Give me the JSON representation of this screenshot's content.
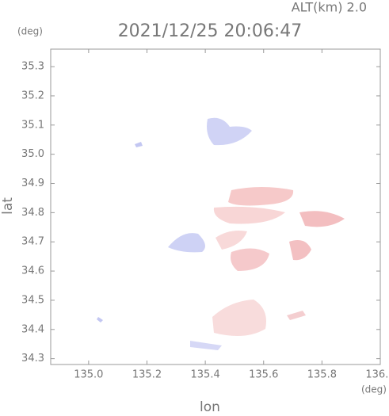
{
  "chart_data": {
    "type": "map",
    "title": "2021/12/25 20:06:47",
    "subtitle": "ALT(km) 2.0",
    "x_label": "lon",
    "y_label": "lat",
    "x_unit": "(deg)",
    "y_unit": "(deg)",
    "xlim": [
      134.87,
      136.0
    ],
    "xticks": [
      {
        "value": 135.0,
        "label": "135.0"
      },
      135.2,
      135.4,
      135.6,
      135.8,
      {
        "value": 136.0,
        "label": "136.0"
      }
    ],
    "ylim": [
      34.28,
      35.36
    ],
    "yticks": [
      34.3,
      34.4,
      34.5,
      34.6,
      34.7,
      34.8,
      34.9,
      {
        "value": 35.0,
        "label": "35.0"
      },
      35.1,
      35.2,
      35.3
    ]
  }
}
